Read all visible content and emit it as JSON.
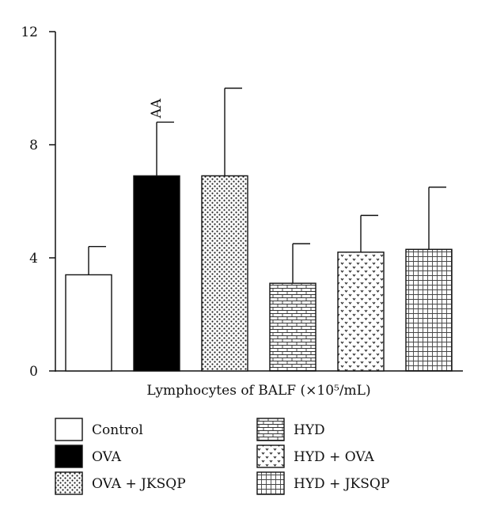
{
  "chart_data": {
    "type": "bar",
    "xlabel": "Lymphocytes of BALF (×10⁵/mL)",
    "ylabel": "",
    "ylim": [
      0,
      12
    ],
    "yticks": [
      0,
      4,
      8,
      12
    ],
    "grid": false,
    "legend_position": "bottom",
    "categories": [
      "Control",
      "OVA",
      "OVA + JKSQP",
      "HYD",
      "HYD + OVA",
      "HYD + JKSQP"
    ],
    "values": [
      3.4,
      6.9,
      6.9,
      3.1,
      4.2,
      4.3
    ],
    "error_upper": [
      4.4,
      8.8,
      10.0,
      4.5,
      5.5,
      6.5
    ],
    "annotations": [
      {
        "category": "OVA",
        "text": "AA"
      }
    ],
    "patterns": [
      "none",
      "solid",
      "dots",
      "brick",
      "chevron",
      "grid"
    ]
  }
}
